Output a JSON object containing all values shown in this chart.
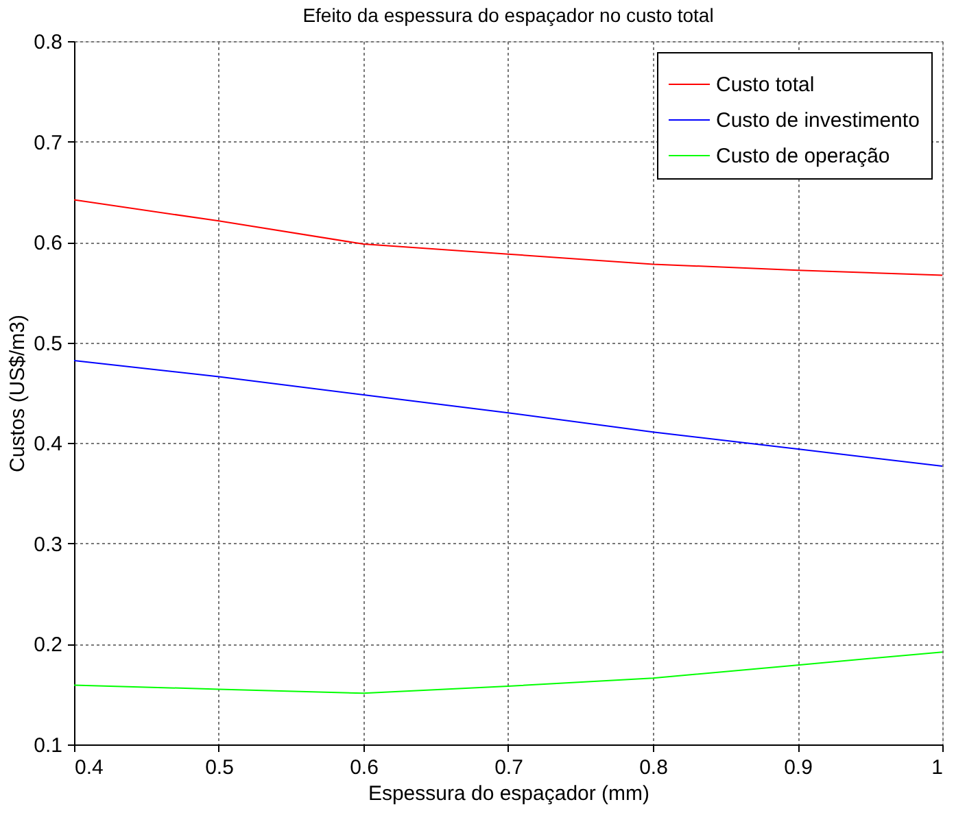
{
  "chart_data": {
    "type": "line",
    "title": "Efeito da espessura do espaçador no custo total",
    "xlabel": "Espessura do espaçador (mm)",
    "ylabel": "Custos (US$/m3)",
    "x": [
      0.4,
      0.5,
      0.6,
      0.7,
      0.8,
      0.9,
      1.0
    ],
    "series": [
      {
        "name": "Custo total",
        "color": "#ff0000",
        "values": [
          0.642,
          0.621,
          0.598,
          0.588,
          0.578,
          0.572,
          0.567
        ]
      },
      {
        "name": "Custo de investimento",
        "color": "#0000ff",
        "values": [
          0.482,
          0.466,
          0.448,
          0.43,
          0.411,
          0.394,
          0.377
        ]
      },
      {
        "name": "Custo de operação",
        "color": "#00ff00",
        "values": [
          0.159,
          0.155,
          0.151,
          0.158,
          0.166,
          0.179,
          0.192
        ]
      }
    ],
    "xlim": [
      0.4,
      1.0
    ],
    "xticks": [
      0.4,
      0.5,
      0.6,
      0.7,
      0.8,
      0.9,
      1
    ],
    "ylim": [
      0.1,
      0.8
    ],
    "yticks": [
      0.1,
      0.2,
      0.3,
      0.4,
      0.5,
      0.6,
      0.7,
      0.8
    ],
    "grid": true,
    "legend": "top right",
    "marker": "none",
    "line_style": "solid"
  }
}
